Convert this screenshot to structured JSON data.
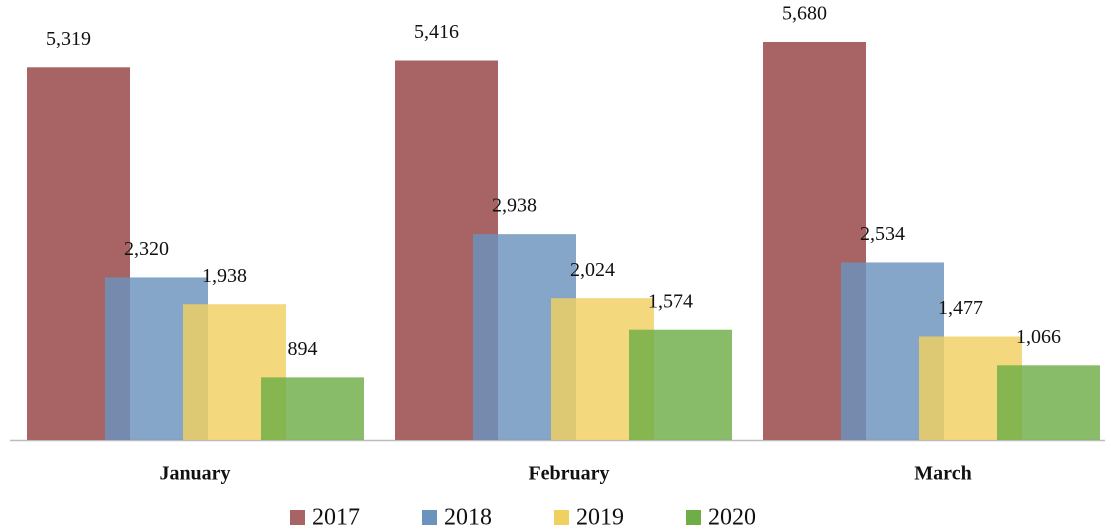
{
  "chart_data": {
    "type": "bar",
    "categories": [
      "January",
      "February",
      "March"
    ],
    "series": [
      {
        "name": "2017",
        "color": "#a86464",
        "values": [
          5319,
          5416,
          5680
        ],
        "value_labels": [
          "5,319",
          "5,416",
          "5,680"
        ]
      },
      {
        "name": "2018",
        "color": "#6b93bd",
        "values": [
          2320,
          2938,
          2534
        ],
        "value_labels": [
          "2,320",
          "2,938",
          "2,534"
        ]
      },
      {
        "name": "2019",
        "color": "#f0d060",
        "values": [
          1938,
          2024,
          1477
        ],
        "value_labels": [
          "1,938",
          "2,024",
          "1,477"
        ]
      },
      {
        "name": "2020",
        "color": "#6fad47",
        "values": [
          894,
          1574,
          1066
        ],
        "value_labels": [
          "894",
          "1,574",
          "1,066"
        ]
      }
    ],
    "legend": "bottom"
  }
}
